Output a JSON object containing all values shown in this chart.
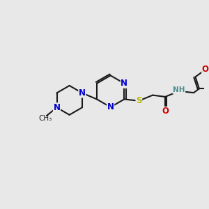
{
  "background_color": "#e8e8e8",
  "bond_color": "#1a1a1a",
  "colors": {
    "N": "#0000cc",
    "S": "#b8b800",
    "O": "#cc0000",
    "C": "#1a1a1a",
    "NH": "#4a8f8f"
  },
  "lw": 1.5,
  "font_size_atom": 8.5,
  "font_size_small": 7.5
}
